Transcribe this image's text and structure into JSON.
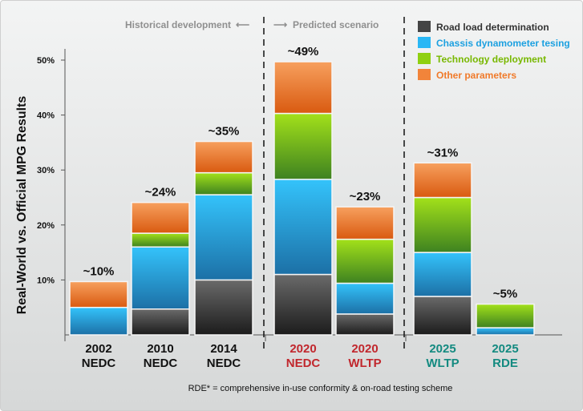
{
  "chart_data": {
    "type": "bar",
    "stacked": true,
    "ylabel": "Real-World vs. Official MPG Results",
    "ylim": [
      0,
      50
    ],
    "yticks": [
      10,
      20,
      30,
      40,
      50
    ],
    "ytick_labels": [
      "10%",
      "20%",
      "30%",
      "40%",
      "50%"
    ],
    "bars": [
      {
        "year": "2002",
        "cycle": "NEDC",
        "group": "historical",
        "total_label": "~10%",
        "values": [
          0,
          5,
          0,
          4.7
        ]
      },
      {
        "year": "2010",
        "cycle": "NEDC",
        "group": "historical",
        "total_label": "~24%",
        "values": [
          4.7,
          11.3,
          2.5,
          5.6
        ]
      },
      {
        "year": "2014",
        "cycle": "NEDC",
        "group": "historical",
        "total_label": "~35%",
        "values": [
          10,
          15.5,
          4,
          5.7
        ]
      },
      {
        "year": "2020",
        "cycle": "NEDC",
        "group": "predicted",
        "total_label": "~49%",
        "values": [
          11,
          17.3,
          12,
          9.4
        ]
      },
      {
        "year": "2020",
        "cycle": "WLTP",
        "group": "predicted",
        "total_label": "~23%",
        "values": [
          3.8,
          5.6,
          8,
          5.9
        ]
      },
      {
        "year": "2025",
        "cycle": "WLTP",
        "group": "predicted",
        "total_label": "~31%",
        "values": [
          7,
          8,
          10,
          6.3
        ]
      },
      {
        "year": "2025",
        "cycle": "RDE",
        "group": "predicted",
        "total_label": "~5%",
        "values": [
          0,
          1.3,
          4.3,
          0
        ]
      }
    ],
    "series": [
      {
        "name": "Road load determination",
        "color": "#4a4a4a"
      },
      {
        "name": "Chassis dynamometer tesing",
        "color": "#2db8f2"
      },
      {
        "name": "Technology deployment",
        "color": "#8fcf10"
      },
      {
        "name": "Other parameters",
        "color": "#f0802f"
      }
    ],
    "annotations": {
      "historical": "Historical development",
      "predicted": "Predicted scenario"
    },
    "category_colors": {
      "historical": "#111111",
      "predicted_nedc_wltp": "#c1272d",
      "predicted_2025": "#138a80"
    },
    "footnote": "RDE* = comprehensive in-use conformity & on-road testing scheme"
  }
}
